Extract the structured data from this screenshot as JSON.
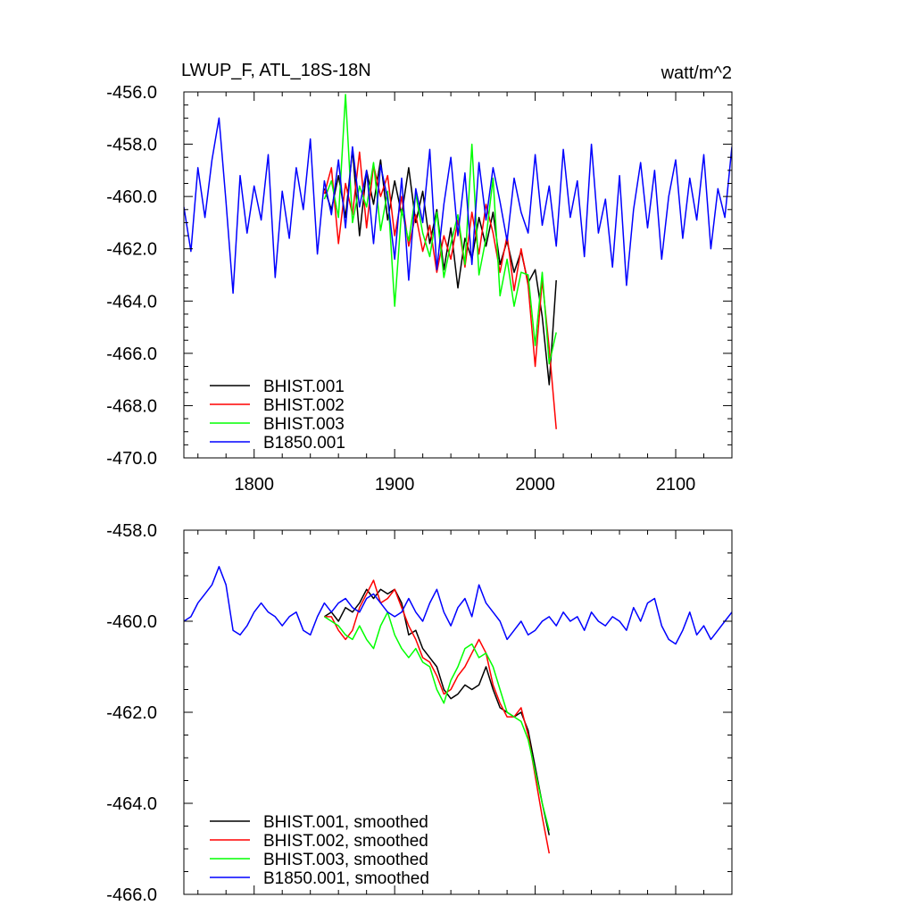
{
  "chart_data": [
    {
      "type": "line",
      "title": "LWUP_F, ATL_18S-18N",
      "units": "watt/m^2",
      "xlim": [
        1750,
        2140
      ],
      "ylim": [
        -470,
        -456
      ],
      "xticks": [
        1800,
        1900,
        2000,
        2100
      ],
      "xtick_labels": [
        "1800",
        "1900",
        "2000",
        "2100"
      ],
      "yticks": [
        -456,
        -458,
        -460,
        -462,
        -464,
        -466,
        -468,
        -470
      ],
      "ytick_labels": [
        "-456.0",
        "-458.0",
        "-460.0",
        "-462.0",
        "-464.0",
        "-466.0",
        "-468.0",
        "-470.0"
      ],
      "legend_position": "bottom-left",
      "series": [
        {
          "name": "BHIST.001",
          "color": "#000000",
          "x": [
            1850,
            1855,
            1860,
            1865,
            1870,
            1875,
            1880,
            1885,
            1890,
            1895,
            1900,
            1905,
            1910,
            1915,
            1920,
            1925,
            1930,
            1935,
            1940,
            1945,
            1950,
            1955,
            1960,
            1965,
            1970,
            1975,
            1980,
            1985,
            1990,
            1995,
            2000,
            2005,
            2010,
            2015
          ],
          "y": [
            -459.7,
            -460.5,
            -459.2,
            -460.8,
            -458.2,
            -461.5,
            -459.0,
            -460.3,
            -458.6,
            -460.9,
            -459.4,
            -460.7,
            -458.9,
            -461.0,
            -459.8,
            -461.8,
            -460.5,
            -462.8,
            -461.2,
            -463.5,
            -461.6,
            -462.4,
            -460.8,
            -461.9,
            -460.6,
            -462.6,
            -461.7,
            -462.9,
            -462.1,
            -463.3,
            -462.8,
            -464.6,
            -467.2,
            -463.2
          ]
        },
        {
          "name": "BHIST.002",
          "color": "#ff0000",
          "x": [
            1850,
            1855,
            1860,
            1865,
            1870,
            1875,
            1880,
            1885,
            1890,
            1895,
            1900,
            1905,
            1910,
            1915,
            1920,
            1925,
            1930,
            1935,
            1940,
            1945,
            1950,
            1955,
            1960,
            1965,
            1970,
            1975,
            1980,
            1985,
            1990,
            1995,
            2000,
            2005,
            2010,
            2015
          ],
          "y": [
            -459.9,
            -458.9,
            -461.8,
            -459.5,
            -460.7,
            -458.3,
            -461.2,
            -458.8,
            -460.0,
            -459.2,
            -461.5,
            -460.0,
            -461.9,
            -460.7,
            -462.1,
            -461.1,
            -462.9,
            -461.5,
            -462.4,
            -460.9,
            -462.7,
            -460.6,
            -462.2,
            -460.3,
            -461.4,
            -462.9,
            -461.5,
            -463.6,
            -462.0,
            -463.4,
            -466.5,
            -463.2,
            -465.8,
            -468.9
          ]
        },
        {
          "name": "BHIST.003",
          "color": "#00ff00",
          "x": [
            1850,
            1855,
            1860,
            1865,
            1870,
            1875,
            1880,
            1885,
            1890,
            1895,
            1900,
            1905,
            1910,
            1915,
            1920,
            1925,
            1930,
            1935,
            1940,
            1945,
            1950,
            1955,
            1960,
            1965,
            1970,
            1975,
            1980,
            1985,
            1990,
            1995,
            2000,
            2005,
            2010,
            2015
          ],
          "y": [
            -460.1,
            -459.4,
            -460.8,
            -456.1,
            -461.0,
            -459.6,
            -460.4,
            -458.7,
            -461.3,
            -459.8,
            -464.2,
            -460.5,
            -461.7,
            -459.9,
            -461.4,
            -462.3,
            -460.6,
            -463.1,
            -461.8,
            -460.7,
            -462.6,
            -458.0,
            -463.0,
            -461.6,
            -459.3,
            -463.8,
            -462.4,
            -464.2,
            -462.9,
            -463.0,
            -465.7,
            -462.9,
            -466.4,
            -465.2
          ]
        },
        {
          "name": "B1850.001",
          "color": "#0000ff",
          "x": [
            1750,
            1755,
            1760,
            1765,
            1770,
            1775,
            1780,
            1785,
            1790,
            1795,
            1800,
            1805,
            1810,
            1815,
            1820,
            1825,
            1830,
            1835,
            1840,
            1845,
            1850,
            1855,
            1860,
            1865,
            1870,
            1875,
            1880,
            1885,
            1890,
            1895,
            1900,
            1905,
            1910,
            1915,
            1920,
            1925,
            1930,
            1935,
            1940,
            1945,
            1950,
            1955,
            1960,
            1965,
            1970,
            1975,
            1980,
            1985,
            1990,
            1995,
            2000,
            2005,
            2010,
            2015,
            2020,
            2025,
            2030,
            2035,
            2040,
            2045,
            2050,
            2055,
            2060,
            2065,
            2070,
            2075,
            2080,
            2085,
            2090,
            2095,
            2100,
            2105,
            2110,
            2115,
            2120,
            2125,
            2130,
            2135,
            2140
          ],
          "y": [
            -460.4,
            -462.1,
            -458.9,
            -460.8,
            -458.6,
            -457.0,
            -460.2,
            -463.7,
            -459.2,
            -461.4,
            -459.6,
            -460.9,
            -458.4,
            -463.1,
            -459.8,
            -461.6,
            -458.9,
            -460.5,
            -457.8,
            -462.2,
            -459.4,
            -460.7,
            -458.6,
            -461.2,
            -458.1,
            -460.4,
            -459.0,
            -461.8,
            -458.8,
            -460.1,
            -462.4,
            -459.3,
            -463.2,
            -459.7,
            -461.0,
            -458.2,
            -462.8,
            -460.3,
            -458.5,
            -461.5,
            -459.1,
            -462.6,
            -458.7,
            -460.9,
            -458.9,
            -460.2,
            -461.7,
            -459.3,
            -460.6,
            -461.4,
            -458.4,
            -461.1,
            -459.6,
            -461.9,
            -458.2,
            -460.8,
            -459.4,
            -462.3,
            -458.0,
            -461.4,
            -460.1,
            -462.7,
            -459.2,
            -463.4,
            -460.5,
            -458.7,
            -461.2,
            -459.0,
            -462.4,
            -460.0,
            -458.6,
            -461.6,
            -459.3,
            -460.9,
            -458.4,
            -462.0,
            -459.7,
            -460.8,
            -458.1
          ]
        }
      ]
    },
    {
      "type": "line",
      "xlim": [
        1750,
        2140
      ],
      "ylim": [
        -466,
        -458
      ],
      "xticks": [
        1800,
        1900,
        2000,
        2100
      ],
      "yticks": [
        -458,
        -460,
        -462,
        -464,
        -466
      ],
      "ytick_labels": [
        "-458.0",
        "-460.0",
        "-462.0",
        "-464.0",
        "-466.0"
      ],
      "legend_position": "bottom-left",
      "series": [
        {
          "name": "BHIST.001, smoothed",
          "color": "#000000",
          "x": [
            1850,
            1855,
            1860,
            1865,
            1870,
            1875,
            1880,
            1885,
            1890,
            1895,
            1900,
            1905,
            1910,
            1915,
            1920,
            1925,
            1930,
            1935,
            1940,
            1945,
            1950,
            1955,
            1960,
            1965,
            1970,
            1975,
            1980,
            1985,
            1990,
            1995,
            2000,
            2005,
            2010
          ],
          "y": [
            -459.9,
            -459.8,
            -460.0,
            -459.7,
            -459.8,
            -459.6,
            -459.3,
            -459.5,
            -459.3,
            -459.4,
            -459.3,
            -459.6,
            -460.3,
            -460.2,
            -460.6,
            -460.8,
            -461.0,
            -461.5,
            -461.7,
            -461.6,
            -461.4,
            -461.5,
            -461.4,
            -461.0,
            -461.5,
            -461.9,
            -462.0,
            -462.1,
            -462.0,
            -462.4,
            -463.2,
            -464.0,
            -464.7
          ]
        },
        {
          "name": "BHIST.002, smoothed",
          "color": "#ff0000",
          "x": [
            1850,
            1855,
            1860,
            1865,
            1870,
            1875,
            1880,
            1885,
            1890,
            1895,
            1900,
            1905,
            1910,
            1915,
            1920,
            1925,
            1930,
            1935,
            1940,
            1945,
            1950,
            1955,
            1960,
            1965,
            1970,
            1975,
            1980,
            1985,
            1990,
            1995,
            2000,
            2005,
            2010
          ],
          "y": [
            -459.9,
            -459.9,
            -460.2,
            -460.4,
            -460.2,
            -459.7,
            -459.4,
            -459.1,
            -459.6,
            -459.5,
            -459.3,
            -459.7,
            -460.1,
            -460.4,
            -460.8,
            -460.9,
            -461.2,
            -461.6,
            -461.5,
            -461.2,
            -461.0,
            -460.7,
            -460.4,
            -460.7,
            -461.4,
            -461.8,
            -462.1,
            -462.1,
            -461.9,
            -462.5,
            -463.4,
            -464.3,
            -465.1
          ]
        },
        {
          "name": "BHIST.003, smoothed",
          "color": "#00ff00",
          "x": [
            1850,
            1855,
            1860,
            1865,
            1870,
            1875,
            1880,
            1885,
            1890,
            1895,
            1900,
            1905,
            1910,
            1915,
            1920,
            1925,
            1930,
            1935,
            1940,
            1945,
            1950,
            1955,
            1960,
            1965,
            1970,
            1975,
            1980,
            1985,
            1990,
            1995,
            2000,
            2005,
            2010
          ],
          "y": [
            -459.9,
            -460.0,
            -460.1,
            -460.3,
            -460.4,
            -460.1,
            -460.4,
            -460.6,
            -460.1,
            -459.8,
            -460.3,
            -460.6,
            -460.8,
            -460.6,
            -460.9,
            -461.0,
            -461.5,
            -461.8,
            -461.3,
            -461.0,
            -460.6,
            -460.5,
            -460.8,
            -460.7,
            -461.0,
            -461.5,
            -462.0,
            -462.1,
            -462.2,
            -462.6,
            -463.3,
            -464.0,
            -464.6
          ]
        },
        {
          "name": "B1850.001, smoothed",
          "color": "#0000ff",
          "x": [
            1750,
            1755,
            1760,
            1765,
            1770,
            1775,
            1780,
            1785,
            1790,
            1795,
            1800,
            1805,
            1810,
            1815,
            1820,
            1825,
            1830,
            1835,
            1840,
            1845,
            1850,
            1855,
            1860,
            1865,
            1870,
            1875,
            1880,
            1885,
            1890,
            1895,
            1900,
            1905,
            1910,
            1915,
            1920,
            1925,
            1930,
            1935,
            1940,
            1945,
            1950,
            1955,
            1960,
            1965,
            1970,
            1975,
            1980,
            1985,
            1990,
            1995,
            2000,
            2005,
            2010,
            2015,
            2020,
            2025,
            2030,
            2035,
            2040,
            2045,
            2050,
            2055,
            2060,
            2065,
            2070,
            2075,
            2080,
            2085,
            2090,
            2095,
            2100,
            2105,
            2110,
            2115,
            2120,
            2125,
            2130,
            2135,
            2140
          ],
          "y": [
            -460.0,
            -459.9,
            -459.6,
            -459.4,
            -459.2,
            -458.8,
            -459.2,
            -460.2,
            -460.3,
            -460.1,
            -459.8,
            -459.6,
            -459.8,
            -459.9,
            -460.1,
            -459.9,
            -459.8,
            -460.2,
            -460.3,
            -459.9,
            -459.6,
            -459.8,
            -459.6,
            -459.5,
            -459.7,
            -459.8,
            -459.5,
            -459.4,
            -459.6,
            -459.8,
            -459.9,
            -459.8,
            -459.5,
            -459.8,
            -460.0,
            -459.6,
            -459.3,
            -459.8,
            -460.1,
            -459.7,
            -459.5,
            -459.9,
            -459.2,
            -459.6,
            -459.8,
            -460.0,
            -460.4,
            -460.2,
            -460.0,
            -460.3,
            -460.2,
            -460.0,
            -459.9,
            -460.1,
            -459.8,
            -460.0,
            -459.9,
            -460.2,
            -459.8,
            -460.0,
            -460.1,
            -459.9,
            -460.0,
            -460.2,
            -459.7,
            -460.0,
            -459.6,
            -459.5,
            -460.1,
            -460.4,
            -460.5,
            -460.2,
            -459.8,
            -460.3,
            -460.1,
            -460.4,
            -460.2,
            -460.0,
            -459.8
          ]
        }
      ]
    }
  ]
}
